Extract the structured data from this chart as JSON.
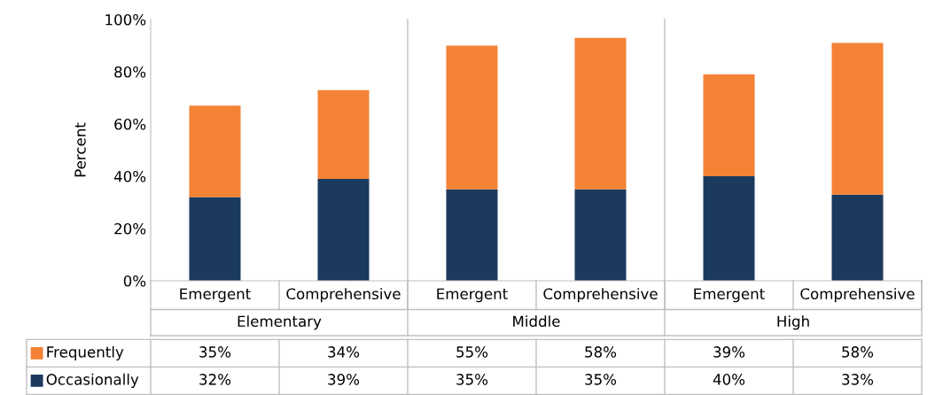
{
  "chart_data": {
    "type": "bar",
    "stacked": true,
    "ylabel": "Percent",
    "categories": [
      "Emergent",
      "Comprehensive",
      "Emergent",
      "Comprehensive",
      "Emergent",
      "Comprehensive"
    ],
    "annotations": [
      "Elementary",
      "Middle",
      "High"
    ],
    "series": [
      {
        "name": "Occasionally",
        "color": "#1b3a5e",
        "values": [
          32,
          39,
          35,
          35,
          40,
          33
        ],
        "value_labels": [
          "32%",
          "39%",
          "35%",
          "35%",
          "40%",
          "33%"
        ]
      },
      {
        "name": "Frequently",
        "color": "#f58235",
        "values": [
          35,
          34,
          55,
          58,
          39,
          58
        ],
        "value_labels": [
          "35%",
          "34%",
          "55%",
          "58%",
          "39%",
          "58%"
        ]
      }
    ],
    "ylim": [
      0,
      100
    ],
    "yticks": [
      {
        "value": 0,
        "label": "0%"
      },
      {
        "value": 20,
        "label": "20%"
      },
      {
        "value": 40,
        "label": "40%"
      },
      {
        "value": 60,
        "label": "60%"
      },
      {
        "value": 80,
        "label": "80%"
      },
      {
        "value": 100,
        "label": "100%"
      }
    ],
    "legend": "bottom",
    "grid": false
  }
}
